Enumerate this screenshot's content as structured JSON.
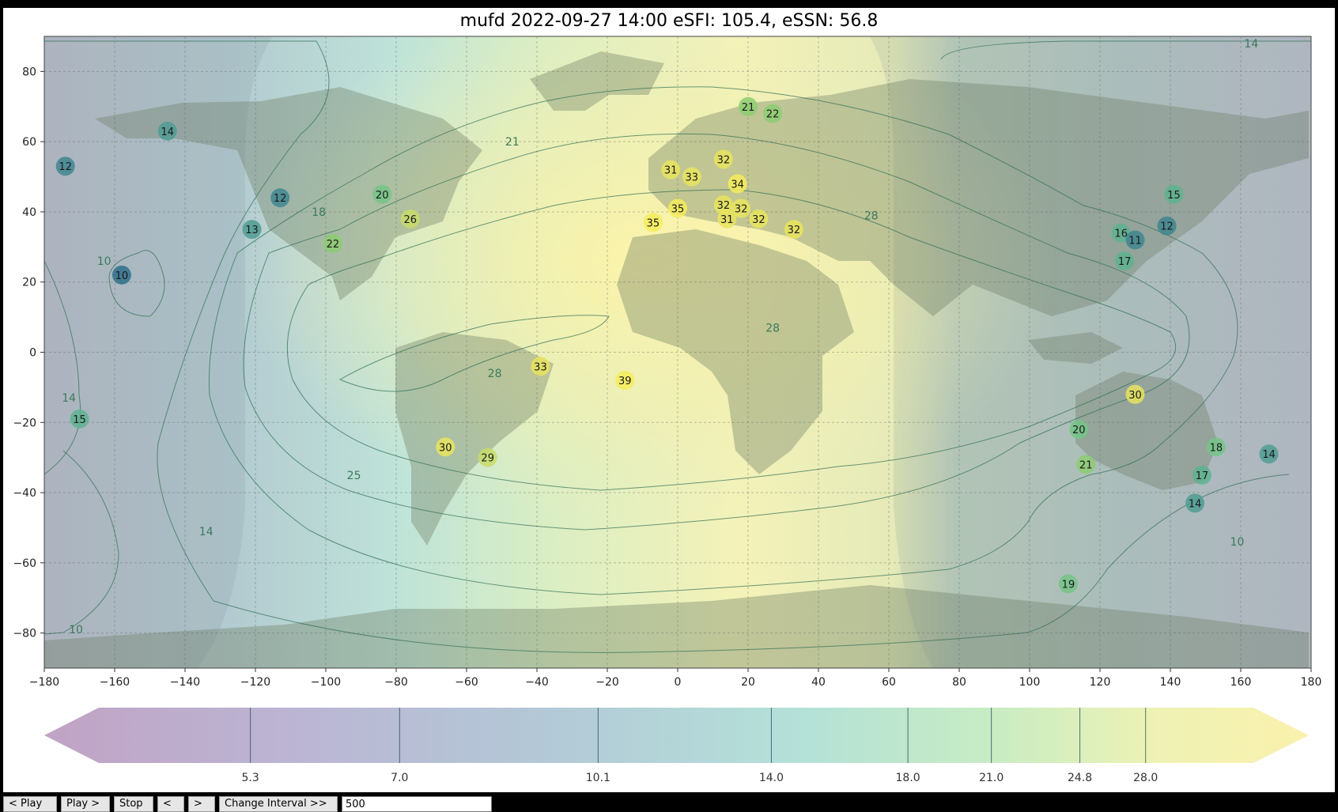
{
  "title": "mufd 2022-09-27 14:00 eSFI: 105.4, eSSN: 56.8",
  "controls": {
    "play_back": "< Play",
    "play_forward": "Play >",
    "stop": "Stop",
    "step_back": "<",
    "step_forward": ">",
    "change_interval": "Change Interval >>",
    "interval_value": "500"
  },
  "chart_data": {
    "type": "heatmap",
    "title": "mufd 2022-09-27 14:00 eSFI: 105.4, eSSN: 56.8",
    "xlim": [
      -180,
      180
    ],
    "ylim": [
      -90,
      90
    ],
    "x_ticks": [
      -180,
      -160,
      -140,
      -120,
      -100,
      -80,
      -60,
      -40,
      -20,
      0,
      20,
      40,
      60,
      80,
      100,
      120,
      140,
      160,
      180
    ],
    "y_ticks": [
      -80,
      -60,
      -40,
      -20,
      0,
      20,
      40,
      60,
      80
    ],
    "grid": true,
    "colorbar": {
      "ticks": [
        5.3,
        7.0,
        10.1,
        14.0,
        18.0,
        21.0,
        24.8,
        28.0
      ],
      "tick_labels": [
        "5.3",
        "7.0",
        "10.1",
        "14.0",
        "18.0",
        "21.0",
        "24.8",
        "28.0"
      ],
      "extend": "both"
    },
    "contour_labels": [
      {
        "text": "14",
        "x": 163,
        "y": 88
      },
      {
        "text": "21",
        "x": -47,
        "y": 60
      },
      {
        "text": "18",
        "x": -102,
        "y": 40
      },
      {
        "text": "28",
        "x": 55,
        "y": 39
      },
      {
        "text": "10",
        "x": -163,
        "y": 26
      },
      {
        "text": "28",
        "x": 27,
        "y": 7
      },
      {
        "text": "28",
        "x": -52,
        "y": -6
      },
      {
        "text": "14",
        "x": -173,
        "y": -13
      },
      {
        "text": "25",
        "x": -92,
        "y": -35
      },
      {
        "text": "14",
        "x": -134,
        "y": -51
      },
      {
        "text": "10",
        "x": 159,
        "y": -54
      },
      {
        "text": "10",
        "x": -171,
        "y": -79
      }
    ],
    "stations": [
      {
        "lon": -174,
        "lat": 53,
        "value": 12
      },
      {
        "lon": -145,
        "lat": 63,
        "value": 14
      },
      {
        "lon": -113,
        "lat": 44,
        "value": 12
      },
      {
        "lon": -121,
        "lat": 35,
        "value": 13
      },
      {
        "lon": -84,
        "lat": 45,
        "value": 20
      },
      {
        "lon": -76,
        "lat": 38,
        "value": 26
      },
      {
        "lon": -98,
        "lat": 31,
        "value": 22
      },
      {
        "lon": -158,
        "lat": 22,
        "value": 10
      },
      {
        "lon": -170,
        "lat": -19,
        "value": 15
      },
      {
        "lon": -39,
        "lat": -4,
        "value": 33
      },
      {
        "lon": -15,
        "lat": -8,
        "value": 39
      },
      {
        "lon": -66,
        "lat": -27,
        "value": 30
      },
      {
        "lon": -54,
        "lat": -30,
        "value": 29
      },
      {
        "lon": 20,
        "lat": 70,
        "value": 21
      },
      {
        "lon": 27,
        "lat": 68,
        "value": 22
      },
      {
        "lon": 13,
        "lat": 55,
        "value": 32
      },
      {
        "lon": -2,
        "lat": 52,
        "value": 31
      },
      {
        "lon": 4,
        "lat": 50,
        "value": 33
      },
      {
        "lon": 17,
        "lat": 48,
        "value": 34
      },
      {
        "lon": 0,
        "lat": 41,
        "value": 35
      },
      {
        "lon": 13,
        "lat": 42,
        "value": 32
      },
      {
        "lon": 18,
        "lat": 41,
        "value": 32
      },
      {
        "lon": 14,
        "lat": 38,
        "value": 31
      },
      {
        "lon": 23,
        "lat": 38,
        "value": 32
      },
      {
        "lon": 33,
        "lat": 35,
        "value": 32
      },
      {
        "lon": -7,
        "lat": 37,
        "value": 35
      },
      {
        "lon": 141,
        "lat": 45,
        "value": 15
      },
      {
        "lon": 126,
        "lat": 34,
        "value": 16
      },
      {
        "lon": 130,
        "lat": 32,
        "value": 11
      },
      {
        "lon": 139,
        "lat": 36,
        "value": 12
      },
      {
        "lon": 127,
        "lat": 26,
        "value": 17
      },
      {
        "lon": 130,
        "lat": -12,
        "value": 30
      },
      {
        "lon": 114,
        "lat": -22,
        "value": 20
      },
      {
        "lon": 116,
        "lat": -32,
        "value": 21
      },
      {
        "lon": 153,
        "lat": -27,
        "value": 18
      },
      {
        "lon": 168,
        "lat": -29,
        "value": 14
      },
      {
        "lon": 149,
        "lat": -35,
        "value": 17
      },
      {
        "lon": 147,
        "lat": -43,
        "value": 14
      },
      {
        "lon": 111,
        "lat": -66,
        "value": 19
      }
    ]
  },
  "colors": {
    "colormap": [
      "#440154",
      "#3b528b",
      "#21918c",
      "#5ec962",
      "#fde725"
    ],
    "land": "#6b7b60",
    "contour": "#2a6b4a"
  }
}
